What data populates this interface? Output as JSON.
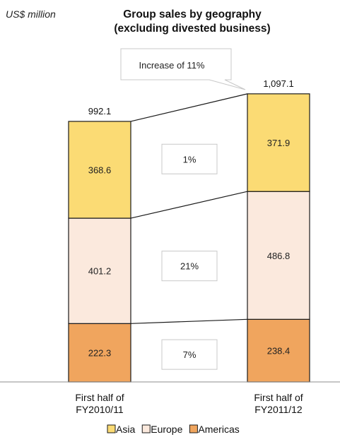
{
  "unit_label": "US$ million",
  "title_line1": "Group sales by geography",
  "title_line2": "(excluding divested business)",
  "colors": {
    "Asia": "#fbdb74",
    "Europe": "#fbe9dd",
    "Americas": "#f0a55e",
    "stroke": "#1a1a1a",
    "box_border": "#c8c8c8"
  },
  "chart_data": {
    "type": "bar",
    "stacked": true,
    "categories": [
      [
        "First half of",
        "FY2010/11"
      ],
      [
        "First half of",
        "FY2011/12"
      ]
    ],
    "series": [
      {
        "name": "Americas",
        "values": [
          222.3,
          238.4
        ]
      },
      {
        "name": "Europe",
        "values": [
          401.2,
          486.8
        ]
      },
      {
        "name": "Asia",
        "values": [
          368.6,
          371.9
        ]
      }
    ],
    "totals": [
      "992.1",
      "1,097.1"
    ],
    "growth_labels": {
      "Americas": "7%",
      "Europe": "21%",
      "Asia": "1%"
    },
    "callout": "Increase of 11%",
    "legend": [
      "Asia",
      "Europe",
      "Americas"
    ],
    "legend_position": "bottom"
  }
}
